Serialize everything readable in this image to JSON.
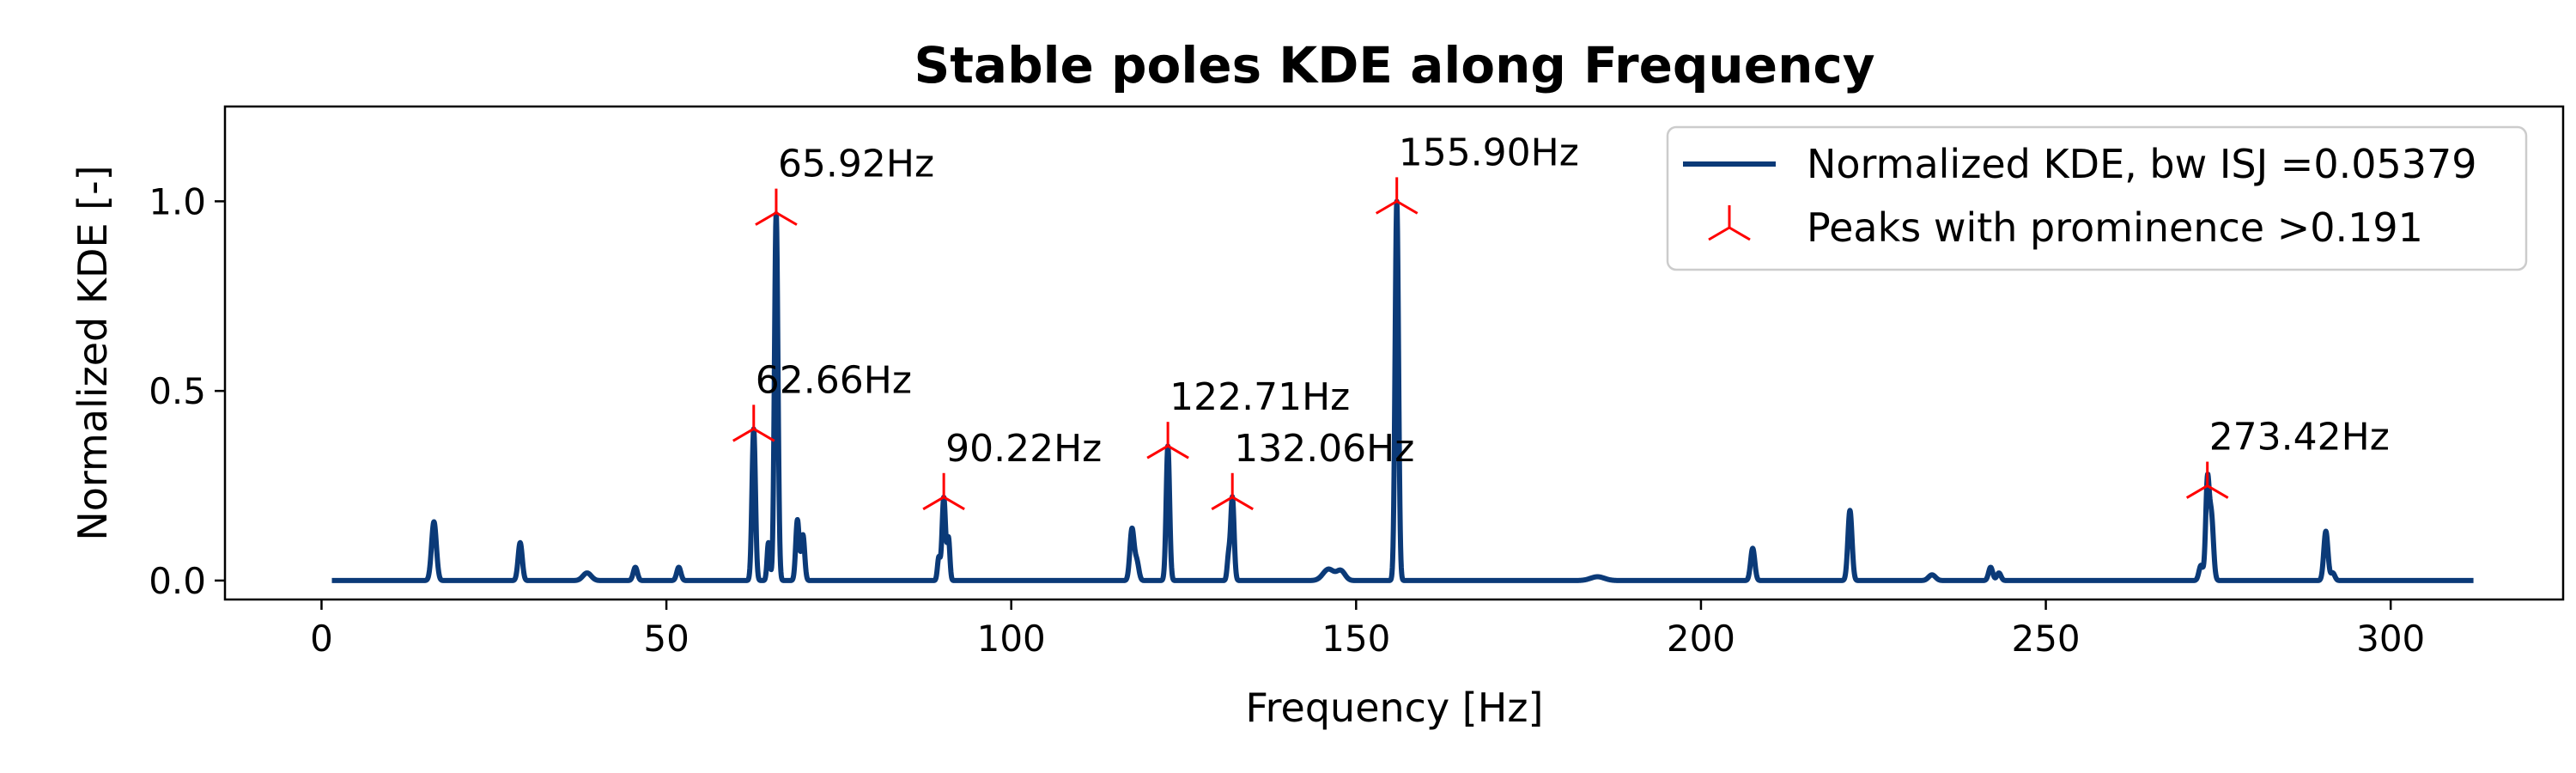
{
  "chart_data": {
    "type": "line",
    "title": "Stable poles KDE along Frequency",
    "xlabel": "Frequency [Hz]",
    "ylabel": "Normalized KDE [-]",
    "xlim": [
      -14,
      325
    ],
    "ylim": [
      -0.05,
      1.25
    ],
    "xticks": [
      0,
      50,
      100,
      150,
      200,
      250,
      300
    ],
    "yticks": [
      0.0,
      0.5,
      1.0
    ],
    "xtick_labels": [
      "0",
      "50",
      "100",
      "150",
      "200",
      "250",
      "300"
    ],
    "ytick_labels": [
      "0.0",
      "0.5",
      "1.0"
    ],
    "grid": false,
    "legend_position": "top-right",
    "colors": {
      "line": "#0b3a78",
      "peaks": "#ff0000"
    },
    "series": [
      {
        "name": "Normalized KDE, bw ISJ =0.05379",
        "x_range": [
          1.5,
          312
        ],
        "baseline": 0.0,
        "peaks": [
          {
            "x": 16.3,
            "y": 0.155,
            "w": 0.35
          },
          {
            "x": 28.8,
            "y": 0.1,
            "w": 0.3
          },
          {
            "x": 38.5,
            "y": 0.02,
            "w": 0.6
          },
          {
            "x": 45.5,
            "y": 0.035,
            "w": 0.3
          },
          {
            "x": 51.8,
            "y": 0.035,
            "w": 0.3
          },
          {
            "x": 62.66,
            "y": 0.4,
            "w": 0.25
          },
          {
            "x": 64.8,
            "y": 0.1,
            "w": 0.2
          },
          {
            "x": 65.92,
            "y": 0.97,
            "w": 0.25
          },
          {
            "x": 69.0,
            "y": 0.16,
            "w": 0.25
          },
          {
            "x": 69.8,
            "y": 0.12,
            "w": 0.25
          },
          {
            "x": 89.5,
            "y": 0.06,
            "w": 0.2
          },
          {
            "x": 90.22,
            "y": 0.22,
            "w": 0.25
          },
          {
            "x": 90.9,
            "y": 0.11,
            "w": 0.2
          },
          {
            "x": 117.5,
            "y": 0.135,
            "w": 0.3
          },
          {
            "x": 118.2,
            "y": 0.05,
            "w": 0.3
          },
          {
            "x": 122.71,
            "y": 0.355,
            "w": 0.25
          },
          {
            "x": 131.5,
            "y": 0.06,
            "w": 0.2
          },
          {
            "x": 132.06,
            "y": 0.22,
            "w": 0.25
          },
          {
            "x": 146.0,
            "y": 0.03,
            "w": 0.8
          },
          {
            "x": 147.8,
            "y": 0.025,
            "w": 0.6
          },
          {
            "x": 155.9,
            "y": 1.0,
            "w": 0.25
          },
          {
            "x": 185.0,
            "y": 0.01,
            "w": 1.0
          },
          {
            "x": 207.5,
            "y": 0.085,
            "w": 0.3
          },
          {
            "x": 221.6,
            "y": 0.185,
            "w": 0.3
          },
          {
            "x": 233.5,
            "y": 0.015,
            "w": 0.5
          },
          {
            "x": 242.0,
            "y": 0.035,
            "w": 0.3
          },
          {
            "x": 243.2,
            "y": 0.02,
            "w": 0.3
          },
          {
            "x": 272.5,
            "y": 0.04,
            "w": 0.3
          },
          {
            "x": 273.42,
            "y": 0.25,
            "w": 0.25
          },
          {
            "x": 274.0,
            "y": 0.17,
            "w": 0.3
          },
          {
            "x": 290.6,
            "y": 0.13,
            "w": 0.3
          },
          {
            "x": 291.6,
            "y": 0.02,
            "w": 0.3
          }
        ]
      },
      {
        "name": "Peaks with prominence >0.191",
        "marker": "tri_up",
        "points": [
          {
            "x": 62.66,
            "y": 0.4,
            "label": "62.66Hz"
          },
          {
            "x": 65.92,
            "y": 0.97,
            "label": "65.92Hz"
          },
          {
            "x": 90.22,
            "y": 0.22,
            "label": "90.22Hz"
          },
          {
            "x": 122.71,
            "y": 0.355,
            "label": "122.71Hz"
          },
          {
            "x": 132.06,
            "y": 0.22,
            "label": "132.06Hz"
          },
          {
            "x": 155.9,
            "y": 1.0,
            "label": "155.90Hz"
          },
          {
            "x": 273.42,
            "y": 0.25,
            "label": "273.42Hz"
          }
        ]
      }
    ]
  }
}
